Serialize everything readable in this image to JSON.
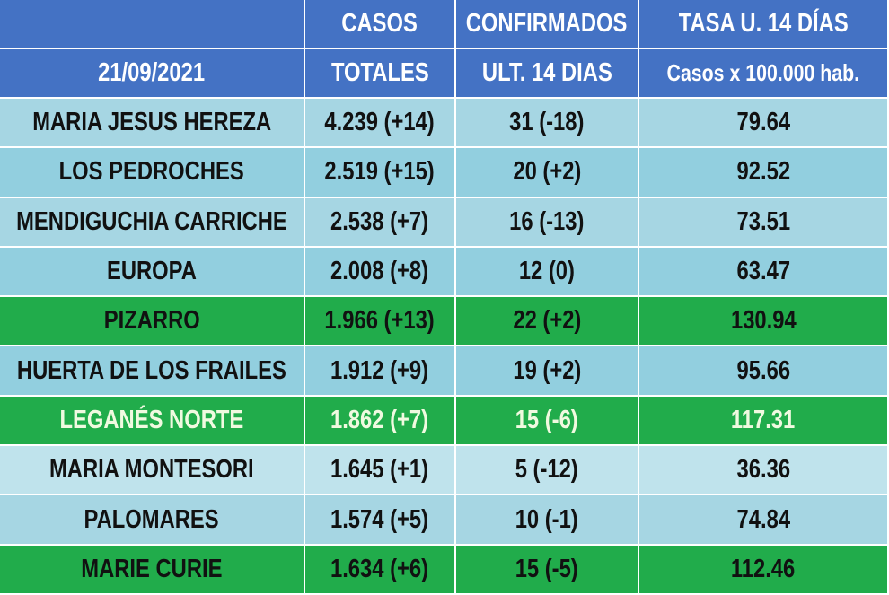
{
  "table": {
    "header": [
      [
        "CASOS",
        "CONFIRMADOS",
        "TASA U. 14 DÍAS"
      ],
      [
        "21/09/2021",
        "TOTALES",
        "ULT. 14 DIAS",
        "Casos x 100.000 hab."
      ]
    ],
    "rows": [
      [
        "MARIA JESUS HEREZA",
        "4.239 (+14)",
        "31 (-18)",
        "79.64"
      ],
      [
        "LOS PEDROCHES",
        "2.519 (+15)",
        "20 (+2)",
        "92.52"
      ],
      [
        "MENDIGUCHIA CARRICHE",
        "2.538 (+7)",
        "16 (-13)",
        "73.51"
      ],
      [
        "EUROPA",
        "2.008 (+8)",
        "12 (0)",
        "63.47"
      ],
      [
        "PIZARRO",
        "1.966 (+13)",
        "22 (+2)",
        "130.94"
      ],
      [
        "HUERTA DE LOS FRAILES",
        "1.912 (+9)",
        "19 (+2)",
        "95.66"
      ],
      [
        "LEGANÉS NORTE",
        "1.862 (+7)",
        "15 (-6)",
        "117.31"
      ],
      [
        "MARIA MONTESORI",
        "1.645 (+1)",
        "5 (-12)",
        "36.36"
      ],
      [
        "PALOMARES",
        "1.574 (+5)",
        "10 (-1)",
        "74.84"
      ],
      [
        "MARIE CURIE",
        "1.634 (+6)",
        "15 (-5)",
        "112.46"
      ]
    ]
  }
}
